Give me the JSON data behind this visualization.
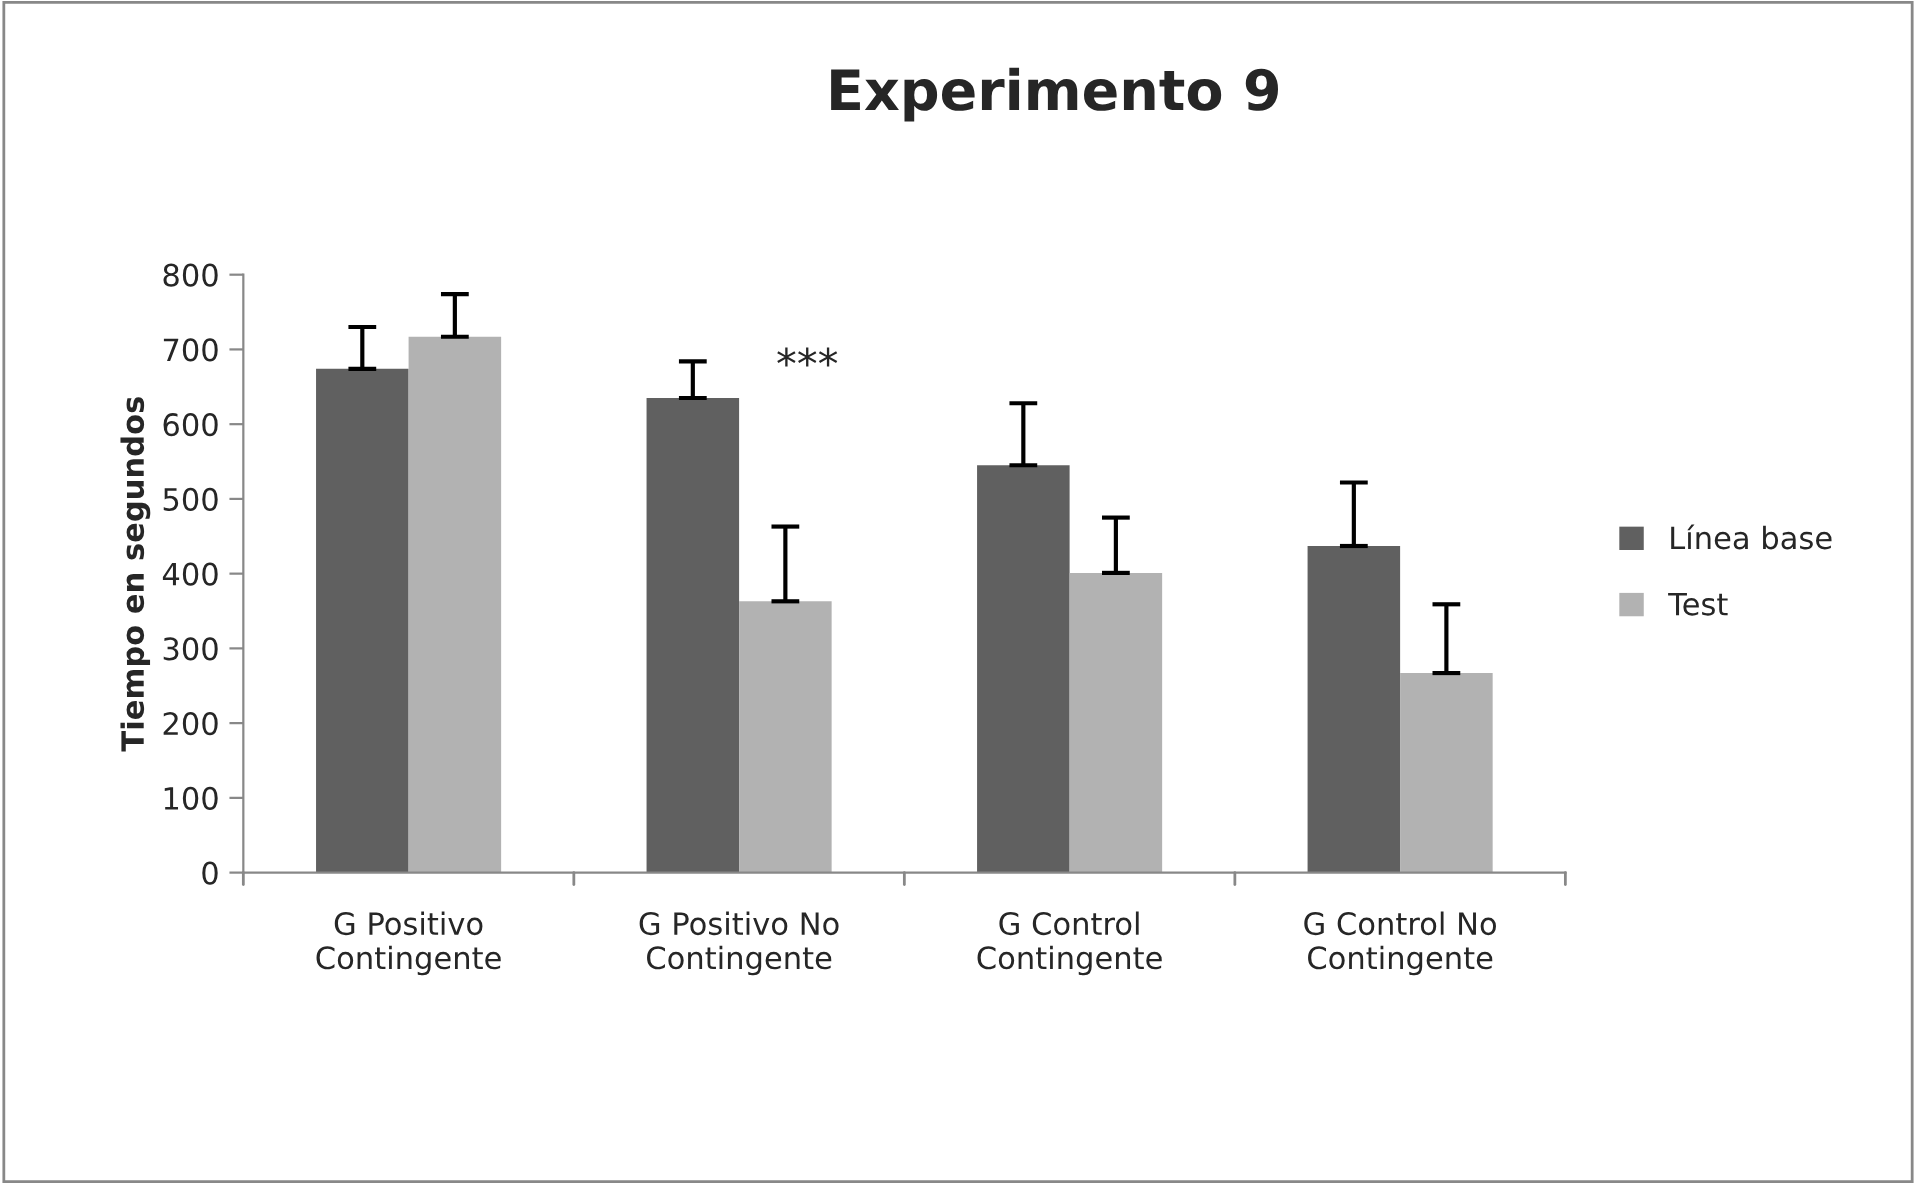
{
  "chart_data": {
    "type": "bar",
    "title": "Experimento 9",
    "ylabel": "Tiempo en segundos",
    "categories": [
      "G Positivo\nContingente",
      "G Positivo No\nContingente",
      "G Control\nContingente",
      "G Control No\nContingente"
    ],
    "series": [
      {
        "name": "Línea base",
        "color": "#606060",
        "values": [
          674,
          635,
          545,
          437
        ],
        "errors": [
          [
            674,
            730
          ],
          [
            635,
            684
          ],
          [
            545,
            628
          ],
          [
            437,
            522
          ]
        ]
      },
      {
        "name": "Test",
        "color": "#b2b2b2",
        "values": [
          717,
          363,
          401,
          267
        ],
        "errors": [
          [
            717,
            774
          ],
          [
            363,
            463
          ],
          [
            401,
            475
          ],
          [
            267,
            359
          ]
        ]
      }
    ],
    "annotations": [
      "***"
    ],
    "ylim": [
      0,
      800
    ],
    "yticks": [
      0,
      100,
      200,
      300,
      400,
      500,
      600,
      700,
      800
    ],
    "grid": false,
    "legend": "right"
  }
}
